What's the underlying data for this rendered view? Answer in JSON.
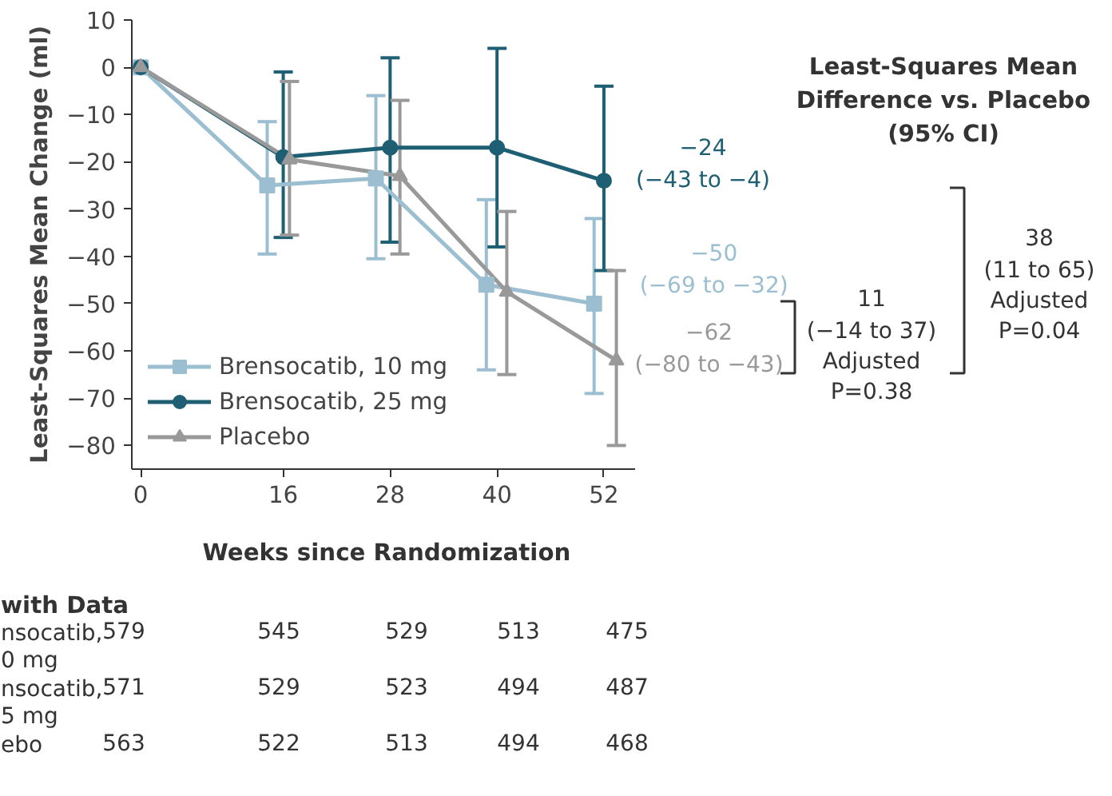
{
  "chart_data": {
    "type": "line",
    "xlabel": "Weeks since Randomization",
    "ylabel": "Least-Squares Mean Change (ml)",
    "xlim": [
      -1,
      55.5
    ],
    "ylim": [
      -85,
      10
    ],
    "xticks": [
      0,
      16,
      28,
      40,
      52
    ],
    "yticks": [
      10,
      0,
      -10,
      -20,
      -30,
      -40,
      -50,
      -60,
      -70,
      -80
    ],
    "grid": false,
    "legend": "bottom left",
    "line_style": "solid",
    "series": [
      {
        "name": "Brensocatib, 10 mg",
        "color": "#9bbfd0",
        "marker": "square",
        "x": [
          0,
          14.2,
          26.4,
          38.8,
          50.9
        ],
        "values": [
          0,
          -25,
          -23.5,
          -46,
          -50
        ],
        "errors": [
          null,
          [
            -39.5,
            -11.5
          ],
          [
            -40.5,
            -6
          ],
          [
            -64,
            -28
          ],
          [
            -69,
            -32
          ]
        ]
      },
      {
        "name": "Brensocatib, 25 mg",
        "color": "#1e5f74",
        "marker": "circle",
        "x": [
          0,
          16,
          28,
          40,
          52
        ],
        "values": [
          0,
          -19,
          -17,
          -17,
          -24
        ],
        "errors": [
          null,
          [
            -36,
            -1
          ],
          [
            -37,
            2
          ],
          [
            -38,
            4
          ],
          [
            -43,
            -4
          ]
        ]
      },
      {
        "name": "Placebo",
        "color": "#999999",
        "marker": "triangle",
        "x": [
          0,
          16.7,
          29.1,
          41.1,
          53.4
        ],
        "values": [
          0,
          -19.5,
          -23,
          -47.5,
          -62
        ],
        "errors": [
          null,
          [
            -35.5,
            -3
          ],
          [
            -39.5,
            -7
          ],
          [
            -65,
            -30.5
          ],
          [
            -80,
            -43
          ]
        ]
      }
    ],
    "annotations": [
      {
        "text": "−24\n(−43 to −4)",
        "x": 52,
        "y": -24
      },
      {
        "text": "−50\n(−69 to −32)",
        "x": 50.9,
        "y": -50
      },
      {
        "text": "−62\n(−80 to −43)",
        "x": 53.4,
        "y": -62
      },
      "Least-Squares Mean\nDifference vs. Placebo\n(95% CI)",
      "11\n(−14 to 37)\nAdjusted\nP=0.38",
      "38\n(11 to 65)\nAdjusted\nP=0.04",
      "with Data",
      "nsocatib,\n0 mg",
      "579",
      "545",
      "529",
      "513",
      "475",
      "nsocatib,\n5 mg",
      "571",
      "529",
      "523",
      "494",
      "487",
      "ebo",
      "563",
      "522",
      "513",
      "494",
      "468"
    ]
  }
}
